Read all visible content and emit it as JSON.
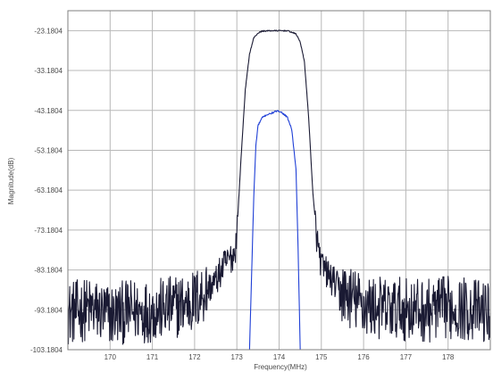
{
  "chart_data": {
    "type": "line",
    "title": "",
    "xlabel": "Frequency(MHz)",
    "ylabel": "Magnitude(dB)",
    "xlim": [
      169,
      179
    ],
    "ylim": [
      -103.1804,
      -18.1804
    ],
    "x_ticks": [
      170,
      171,
      172,
      173,
      174,
      175,
      176,
      177,
      178
    ],
    "x_tick_labels": [
      "170",
      "171",
      "172",
      "173",
      "174",
      "175",
      "176",
      "177",
      "178"
    ],
    "y_ticks": [
      -103.1804,
      -93.1804,
      -83.1804,
      -73.1804,
      -63.1804,
      -53.1804,
      -43.1804,
      -33.1804,
      -23.1804
    ],
    "y_tick_labels": [
      "-103.1804",
      "-93.1804",
      "-83.1804",
      "-73.1804",
      "-63.1804",
      "-53.1804",
      "-43.1804",
      "-33.1804",
      "-23.1804"
    ],
    "grid": true,
    "colors": {
      "series_1": "#1a1a33",
      "series_2": "#1f3fd6",
      "grid": "#b8b8b8",
      "frame": "#7f7f7f"
    },
    "series": [
      {
        "x": [
          169.0,
          169.5,
          170.0,
          170.5,
          171.0,
          171.5,
          172.0,
          172.5,
          172.7,
          172.95,
          173.0,
          173.1,
          173.2,
          173.3,
          173.4,
          173.5,
          173.6,
          173.8,
          174.0,
          174.2,
          174.4,
          174.5,
          174.6,
          174.7,
          174.8,
          174.9,
          175.0,
          175.2,
          175.5,
          176.0,
          176.5,
          177.0,
          177.5,
          178.0,
          178.5,
          179.0
        ],
        "y": [
          -94.0,
          -93.0,
          -94.5,
          -93.5,
          -93.5,
          -92.5,
          -91.0,
          -86.0,
          -82.0,
          -79.0,
          -74.0,
          -55.0,
          -38.0,
          -29.0,
          -25.0,
          -23.8,
          -23.3,
          -23.2,
          -23.2,
          -23.2,
          -24.0,
          -26.0,
          -31.0,
          -45.0,
          -64.0,
          -76.0,
          -82.0,
          -85.0,
          -89.0,
          -92.0,
          -93.0,
          -93.0,
          -93.5,
          -92.5,
          -93.0,
          -94.0
        ]
      },
      {
        "x": [
          173.3,
          173.4,
          173.45,
          173.5,
          173.6,
          173.7,
          173.8,
          173.9,
          174.0,
          174.1,
          174.2,
          174.3,
          174.4,
          174.45,
          174.5
        ],
        "y": [
          -103.2,
          -65.0,
          -52.0,
          -47.0,
          -45.0,
          -44.3,
          -44.0,
          -43.5,
          -43.3,
          -44.0,
          -45.0,
          -48.0,
          -58.0,
          -78.0,
          -103.2
        ]
      }
    ]
  }
}
